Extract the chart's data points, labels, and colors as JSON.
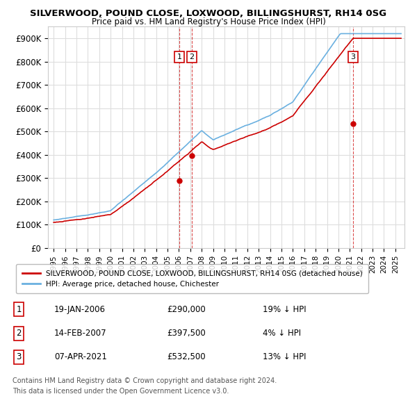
{
  "title": "SILVERWOOD, POUND CLOSE, LOXWOOD, BILLINGSHURST, RH14 0SG",
  "subtitle": "Price paid vs. HM Land Registry's House Price Index (HPI)",
  "ylim": [
    0,
    950000
  ],
  "yticks": [
    0,
    100000,
    200000,
    300000,
    400000,
    500000,
    600000,
    700000,
    800000,
    900000
  ],
  "ytick_labels": [
    "£0",
    "£100K",
    "£200K",
    "£300K",
    "£400K",
    "£500K",
    "£600K",
    "£700K",
    "£800K",
    "£900K"
  ],
  "hpi_color": "#6ab0e0",
  "price_color": "#cc0000",
  "vline_color": "#cc0000",
  "grid_color": "#dddddd",
  "bg_color": "#ffffff",
  "transactions": [
    {
      "label": "1",
      "date_str": "19-JAN-2006",
      "year": 2006.05,
      "price": 290000,
      "pct": "19%"
    },
    {
      "label": "2",
      "date_str": "14-FEB-2007",
      "year": 2007.12,
      "price": 397500,
      "pct": "4%"
    },
    {
      "label": "3",
      "date_str": "07-APR-2021",
      "year": 2021.27,
      "price": 532500,
      "pct": "13%"
    }
  ],
  "legend_line1": "SILVERWOOD, POUND CLOSE, LOXWOOD, BILLINGSHURST, RH14 0SG (detached house)",
  "legend_line2": "HPI: Average price, detached house, Chichester",
  "footer1": "Contains HM Land Registry data © Crown copyright and database right 2024.",
  "footer2": "This data is licensed under the Open Government Licence v3.0."
}
